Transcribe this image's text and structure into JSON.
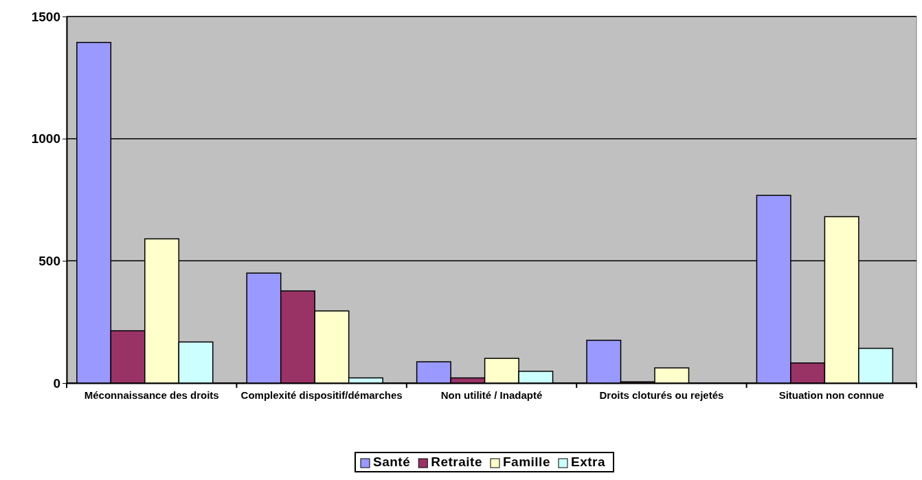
{
  "chart_data": {
    "type": "bar",
    "categories": [
      "Méconnaissance des droits",
      "Complexité dispositif/démarches",
      "Non utilité / Inadapté",
      "Droits cloturés ou rejetés",
      "Situation non connue"
    ],
    "series": [
      {
        "name": "Santé",
        "color": "#9999ff",
        "values": [
          1394,
          450,
          87,
          175,
          768
        ]
      },
      {
        "name": "Retraite",
        "color": "#993366",
        "values": [
          214,
          377,
          21,
          5,
          82
        ]
      },
      {
        "name": "Famille",
        "color": "#ffffcc",
        "values": [
          590,
          295,
          101,
          62,
          681
        ]
      },
      {
        "name": "Extra",
        "color": "#ccffff",
        "values": [
          168,
          21,
          48,
          0,
          142
        ]
      }
    ],
    "ylim": [
      0,
      1500
    ],
    "yticks": [
      0,
      500,
      1000,
      1500
    ],
    "grid": "y",
    "legend": "bottom"
  }
}
